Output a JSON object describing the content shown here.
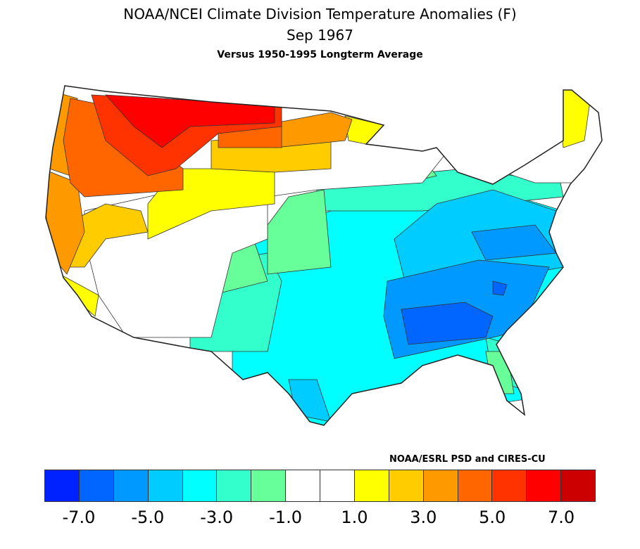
{
  "title": "NOAA/NCEI Climate Division Temperature Anomalies (F)",
  "period": "Sep 1967",
  "subtitle": "Versus 1950-1995 Longterm Average",
  "credit": "NOAA/ESRL PSD and CIRES-CU",
  "legend": {
    "colors": [
      "#0022ff",
      "#0066ff",
      "#0099ff",
      "#00ccff",
      "#00ffff",
      "#33ffcc",
      "#66ff99",
      "#ffffff",
      "#ffffff",
      "#ffff00",
      "#ffcc00",
      "#ff9900",
      "#ff6600",
      "#ff3300",
      "#ff0000",
      "#cc0000"
    ],
    "ticks": [
      "-7.0",
      "-5.0",
      "-3.0",
      "-1.0",
      "1.0",
      "3.0",
      "5.0",
      "7.0"
    ]
  }
}
